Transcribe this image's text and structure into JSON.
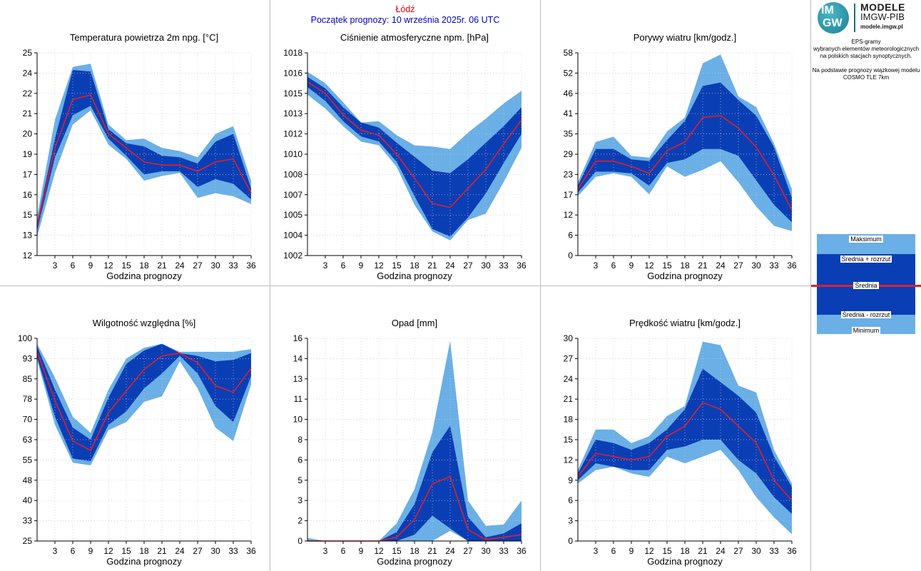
{
  "header": {
    "station": "Łódź",
    "start": "Początek prognozy: 10 września 2025r. 06 UTC"
  },
  "logo": {
    "mark_line1": "IM",
    "mark_line2": "GW",
    "name": "MODELE",
    "org": "IMGW-PIB",
    "site": "modele.imgw.pl"
  },
  "side_text": {
    "line1": "EPS-gramy",
    "line2": "wybranych elementów meteorologicznych",
    "line3": "na polskich stacjach  synoptycznych.",
    "line4": "Na podstawie prognozy wiązkowej modelu",
    "line5": "COSMO TLE 7km"
  },
  "legend": {
    "max": "Maksimum",
    "mean_plus": "Średnia + rozrzut",
    "mean": "Średnia",
    "mean_minus": "Średnia - rozrzut",
    "min": "Minimum"
  },
  "colors": {
    "outer_band": "#6aafe6",
    "inner_band": "#0a3eb5",
    "mean_line": "#e0202a",
    "station_text": "#e00000",
    "start_text": "#0000cc"
  },
  "chart_data": [
    {
      "id": "temp",
      "type": "area",
      "title": "Temperatura powietrza 2m npg. [°C]",
      "xlabel": "Godzina prognozy",
      "x": [
        0,
        3,
        6,
        9,
        12,
        15,
        18,
        21,
        24,
        27,
        30,
        33,
        36
      ],
      "xticks": [
        "3",
        "6",
        "9",
        "12",
        "15",
        "18",
        "21",
        "24",
        "27",
        "30",
        "33",
        "36"
      ],
      "yticks": [
        "12",
        "13",
        "15",
        "16",
        "17",
        "19",
        "20",
        "21",
        "22",
        "24",
        "25"
      ],
      "ylim": [
        12,
        25
      ],
      "series": [
        {
          "role": "max",
          "values": [
            14.5,
            20.7,
            24.1,
            24.3,
            20.4,
            19.4,
            19.5,
            18.9,
            18.7,
            18.3,
            19.8,
            20.3,
            16.8
          ]
        },
        {
          "role": "mean_plus",
          "values": [
            14.1,
            19.5,
            23.9,
            23.8,
            20.1,
            19.2,
            19.0,
            18.4,
            18.3,
            17.9,
            19.3,
            19.8,
            16.3
          ]
        },
        {
          "role": "mean",
          "values": [
            13.9,
            18.9,
            22.0,
            22.3,
            19.8,
            18.9,
            18.0,
            17.8,
            17.8,
            17.4,
            18.0,
            18.2,
            16.0
          ]
        },
        {
          "role": "mean_minus",
          "values": [
            13.6,
            18.3,
            21.0,
            21.6,
            19.5,
            18.4,
            17.2,
            17.4,
            17.4,
            16.4,
            16.9,
            16.6,
            15.6
          ]
        },
        {
          "role": "min",
          "values": [
            13.2,
            17.3,
            20.4,
            21.3,
            19.1,
            18.2,
            16.8,
            17.1,
            17.3,
            15.7,
            16.0,
            15.8,
            15.3
          ]
        }
      ]
    },
    {
      "id": "press",
      "type": "area",
      "title": "Ciśnienie atmosferyczne npm. [hPa]",
      "xlabel": "Godzina prognozy",
      "x": [
        0,
        3,
        6,
        9,
        12,
        15,
        18,
        21,
        24,
        27,
        30,
        33,
        36
      ],
      "xticks": [
        "3",
        "6",
        "9",
        "12",
        "15",
        "18",
        "21",
        "24",
        "27",
        "30",
        "33",
        "36"
      ],
      "yticks": [
        "1002",
        "1004",
        "1005",
        "1007",
        "1008",
        "1010",
        "1012",
        "1013",
        "1015",
        "1016",
        "1018"
      ],
      "ylim": [
        1002,
        1018
      ],
      "series": [
        {
          "role": "max",
          "values": [
            1016.5,
            1015.6,
            1014.1,
            1012.5,
            1012.6,
            1011.5,
            1010.7,
            1010.6,
            1010.4,
            1011.7,
            1012.8,
            1014.0,
            1015.0
          ]
        },
        {
          "role": "mean_plus",
          "values": [
            1016.1,
            1015.2,
            1013.7,
            1012.5,
            1012.1,
            1010.9,
            1009.8,
            1008.7,
            1008.5,
            1009.6,
            1010.9,
            1012.2,
            1013.7
          ]
        },
        {
          "role": "mean",
          "values": [
            1015.7,
            1014.8,
            1013.1,
            1011.9,
            1011.5,
            1010.0,
            1008.1,
            1006.1,
            1005.8,
            1007.3,
            1008.8,
            1010.8,
            1012.7
          ]
        },
        {
          "role": "mean_minus",
          "values": [
            1015.3,
            1014.2,
            1012.6,
            1011.4,
            1011.0,
            1009.4,
            1006.7,
            1004.1,
            1003.5,
            1005.0,
            1006.9,
            1009.3,
            1011.6
          ]
        },
        {
          "role": "min",
          "values": [
            1014.7,
            1013.6,
            1012.2,
            1011.0,
            1010.7,
            1009.0,
            1006.0,
            1003.9,
            1003.2,
            1004.8,
            1005.3,
            1007.8,
            1010.5
          ]
        }
      ]
    },
    {
      "id": "gust",
      "type": "area",
      "title": "Porywy wiatru [km/godz.]",
      "xlabel": "Godzina prognozy",
      "x": [
        0,
        3,
        6,
        9,
        12,
        15,
        18,
        21,
        24,
        27,
        30,
        33,
        36
      ],
      "xticks": [
        "3",
        "6",
        "9",
        "12",
        "15",
        "18",
        "21",
        "24",
        "27",
        "30",
        "33",
        "36"
      ],
      "yticks": [
        "0",
        "6",
        "12",
        "17",
        "23",
        "29",
        "35",
        "41",
        "46",
        "52",
        "58"
      ],
      "ylim": [
        0,
        58
      ],
      "series": [
        {
          "role": "max",
          "values": [
            21,
            32.5,
            34,
            28.5,
            28,
            35.5,
            39.5,
            55,
            57.5,
            45.5,
            42.5,
            32,
            19
          ]
        },
        {
          "role": "mean_plus",
          "values": [
            20,
            30.5,
            30.5,
            27.5,
            27,
            33,
            38.5,
            48.5,
            49.5,
            44.5,
            40,
            31,
            16.5
          ]
        },
        {
          "role": "mean",
          "values": [
            19,
            27,
            27,
            25.5,
            23.5,
            30,
            32.5,
            39.5,
            40,
            36.5,
            31,
            23,
            13
          ]
        },
        {
          "role": "mean_minus",
          "values": [
            18,
            24,
            24,
            23.5,
            20,
            26.5,
            27.5,
            30.5,
            30.5,
            28.5,
            21.5,
            14.5,
            9.5
          ]
        },
        {
          "role": "min",
          "values": [
            17,
            22.5,
            23.5,
            22.5,
            17.5,
            25.5,
            22.5,
            24.5,
            27,
            21,
            14,
            8.5,
            7
          ]
        }
      ]
    },
    {
      "id": "rh",
      "type": "area",
      "title": "Wilgotność względna [%]",
      "xlabel": "Godzina prognozy",
      "x": [
        0,
        3,
        6,
        9,
        12,
        15,
        18,
        21,
        24,
        27,
        30,
        33,
        36
      ],
      "xticks": [
        "3",
        "6",
        "9",
        "12",
        "15",
        "18",
        "21",
        "24",
        "27",
        "30",
        "33",
        "36"
      ],
      "yticks": [
        "25",
        "33",
        "40",
        "48",
        "55",
        "63",
        "70",
        "78",
        "85",
        "93",
        "100"
      ],
      "ylim": [
        25,
        100
      ],
      "series": [
        {
          "role": "max",
          "values": [
            98,
            85.5,
            71,
            65,
            81,
            92.5,
            96.5,
            98,
            95,
            95,
            95,
            95,
            96
          ]
        },
        {
          "role": "mean_plus",
          "values": [
            97,
            81,
            67,
            62.5,
            78,
            90.5,
            95.5,
            98,
            94.5,
            93.5,
            91.5,
            92,
            94.5
          ]
        },
        {
          "role": "mean",
          "values": [
            95,
            77,
            62,
            58.5,
            72.5,
            80.5,
            88.5,
            93.5,
            94.5,
            91,
            82.5,
            80,
            89
          ]
        },
        {
          "role": "mean_minus",
          "values": [
            93,
            71,
            55.5,
            54.5,
            68,
            73,
            81.5,
            87,
            93.5,
            87,
            75,
            69,
            86
          ]
        },
        {
          "role": "min",
          "values": [
            92,
            68,
            54,
            53,
            66,
            69,
            76.5,
            78.5,
            91.5,
            81.5,
            67,
            62,
            83
          ]
        }
      ]
    },
    {
      "id": "precip",
      "type": "area",
      "title": "Opad [mm]",
      "xlabel": "Godzina prognozy",
      "x": [
        0,
        3,
        6,
        9,
        12,
        15,
        18,
        21,
        24,
        27,
        30,
        33,
        36
      ],
      "xticks": [
        "3",
        "6",
        "9",
        "12",
        "15",
        "18",
        "21",
        "24",
        "27",
        "30",
        "33",
        "36"
      ],
      "yticks": [
        "0",
        "2",
        "3",
        "5",
        "6",
        "8",
        "10",
        "11",
        "13",
        "14",
        "16"
      ],
      "ylim": [
        0,
        16
      ],
      "series": [
        {
          "role": "max",
          "values": [
            0.25,
            0,
            0,
            0,
            0,
            1.4,
            4.1,
            8.6,
            15.8,
            3.2,
            1.2,
            1.3,
            3.2
          ]
        },
        {
          "role": "mean_plus",
          "values": [
            0,
            0,
            0,
            0,
            0,
            0.7,
            2.9,
            7.0,
            9.1,
            1.9,
            0.3,
            0.6,
            1.4
          ]
        },
        {
          "role": "mean",
          "values": [
            0,
            0,
            0,
            0,
            0,
            0.3,
            1.7,
            4.5,
            5.1,
            0.9,
            0.1,
            0.3,
            0.5
          ]
        },
        {
          "role": "mean_minus",
          "values": [
            0,
            0,
            0,
            0,
            0,
            0,
            0.5,
            2.0,
            1.0,
            0,
            0,
            0,
            0
          ]
        },
        {
          "role": "min",
          "values": [
            0,
            0,
            0,
            0,
            0,
            0,
            0,
            0,
            0.8,
            0,
            0,
            0,
            0
          ]
        }
      ]
    },
    {
      "id": "wind",
      "type": "area",
      "title": "Prędkość wiatru [km/godz.]",
      "xlabel": "Godzina prognozy",
      "x": [
        0,
        3,
        6,
        9,
        12,
        15,
        18,
        21,
        24,
        27,
        30,
        33,
        36
      ],
      "xticks": [
        "3",
        "6",
        "9",
        "12",
        "15",
        "18",
        "21",
        "24",
        "27",
        "30",
        "33",
        "36"
      ],
      "yticks": [
        "0",
        "3",
        "6",
        "9",
        "12",
        "15",
        "18",
        "21",
        "24",
        "27",
        "30"
      ],
      "ylim": [
        0,
        30
      ],
      "series": [
        {
          "role": "max",
          "values": [
            10.5,
            16.5,
            16.5,
            14.5,
            15.5,
            18.5,
            20,
            29.5,
            29,
            23,
            22,
            13.5,
            8.5
          ]
        },
        {
          "role": "mean_plus",
          "values": [
            10,
            15,
            14.5,
            13.5,
            14.5,
            16.5,
            19.5,
            25.5,
            23.5,
            21.5,
            19,
            12.5,
            8
          ]
        },
        {
          "role": "mean",
          "values": [
            9.5,
            13,
            12.5,
            12,
            12.5,
            15.5,
            17,
            20.5,
            19.5,
            17,
            14.5,
            9,
            6
          ]
        },
        {
          "role": "mean_minus",
          "values": [
            9,
            11.5,
            11,
            10.5,
            10.5,
            13.5,
            14,
            15,
            15,
            12,
            10,
            6.5,
            4
          ]
        },
        {
          "role": "min",
          "values": [
            8.5,
            10.5,
            11,
            10,
            9.5,
            12.5,
            11.5,
            12.5,
            13.5,
            10.5,
            6.5,
            3.5,
            1
          ]
        }
      ]
    }
  ]
}
